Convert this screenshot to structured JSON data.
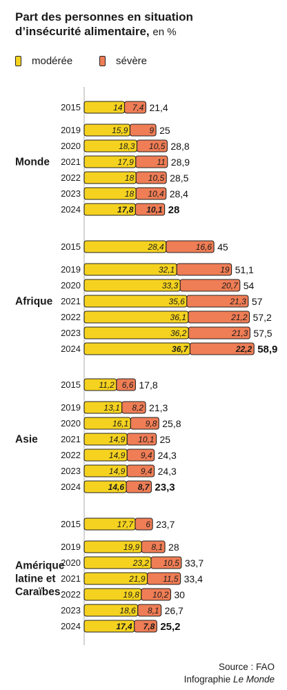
{
  "title": {
    "line1": "Part des personnes en situation",
    "line2": "d’insécurité alimentaire,",
    "unit": "en %"
  },
  "colors": {
    "moderate": "#f5d21f",
    "severe": "#ef7d55",
    "outline": "#222222"
  },
  "source": {
    "line1": "Source : FAO",
    "line2_prefix": "Infographie ",
    "line2_italic": "Le Monde"
  },
  "chart_data": {
    "type": "bar",
    "orientation": "horizontal",
    "stacked": true,
    "legend": [
      "modérée",
      "sévère"
    ],
    "groups": [
      {
        "name": "Monde",
        "rows": [
          {
            "year": "2015",
            "moderate": "14",
            "severe": "7,4",
            "total": "21,4"
          },
          {
            "year": "2019",
            "moderate": "15,9",
            "severe": "9",
            "total": "25"
          },
          {
            "year": "2020",
            "moderate": "18,3",
            "severe": "10,5",
            "total": "28,8"
          },
          {
            "year": "2021",
            "moderate": "17,9",
            "severe": "11",
            "total": "28,9"
          },
          {
            "year": "2022",
            "moderate": "18",
            "severe": "10,5",
            "total": "28,5"
          },
          {
            "year": "2023",
            "moderate": "18",
            "severe": "10,4",
            "total": "28,4"
          },
          {
            "year": "2024",
            "moderate": "17,8",
            "severe": "10,1",
            "total": "28"
          }
        ]
      },
      {
        "name": "Afrique",
        "rows": [
          {
            "year": "2015",
            "moderate": "28,4",
            "severe": "16,6",
            "total": "45"
          },
          {
            "year": "2019",
            "moderate": "32,1",
            "severe": "19",
            "total": "51,1"
          },
          {
            "year": "2020",
            "moderate": "33,3",
            "severe": "20,7",
            "total": "54"
          },
          {
            "year": "2021",
            "moderate": "35,6",
            "severe": "21,3",
            "total": "57"
          },
          {
            "year": "2022",
            "moderate": "36,1",
            "severe": "21,2",
            "total": "57,2"
          },
          {
            "year": "2023",
            "moderate": "36,2",
            "severe": "21,3",
            "total": "57,5"
          },
          {
            "year": "2024",
            "moderate": "36,7",
            "severe": "22,2",
            "total": "58,9"
          }
        ]
      },
      {
        "name": "Asie",
        "rows": [
          {
            "year": "2015",
            "moderate": "11,2",
            "severe": "6,6",
            "total": "17,8"
          },
          {
            "year": "2019",
            "moderate": "13,1",
            "severe": "8,2",
            "total": "21,3"
          },
          {
            "year": "2020",
            "moderate": "16,1",
            "severe": "9,8",
            "total": "25,8"
          },
          {
            "year": "2021",
            "moderate": "14,9",
            "severe": "10,1",
            "total": "25"
          },
          {
            "year": "2022",
            "moderate": "14,9",
            "severe": "9,4",
            "total": "24,3"
          },
          {
            "year": "2023",
            "moderate": "14,9",
            "severe": "9,4",
            "total": "24,3"
          },
          {
            "year": "2024",
            "moderate": "14,6",
            "severe": "8,7",
            "total": "23,3"
          }
        ]
      },
      {
        "name": "Amérique latine et Caraïbes",
        "label_lines": [
          "Amérique",
          "latine et",
          "Caraïbes"
        ],
        "rows": [
          {
            "year": "2015",
            "moderate": "17,7",
            "severe": "6",
            "total": "23,7"
          },
          {
            "year": "2019",
            "moderate": "19,9",
            "severe": "8,1",
            "total": "28"
          },
          {
            "year": "2020",
            "moderate": "23,2",
            "severe": "10,5",
            "total": "33,7"
          },
          {
            "year": "2021",
            "moderate": "21,9",
            "severe": "11,5",
            "total": "33,4"
          },
          {
            "year": "2022",
            "moderate": "19,8",
            "severe": "10,2",
            "total": "30"
          },
          {
            "year": "2023",
            "moderate": "18,6",
            "severe": "8,1",
            "total": "26,7"
          },
          {
            "year": "2024",
            "moderate": "17,4",
            "severe": "7,8",
            "total": "25,2"
          }
        ]
      }
    ]
  }
}
